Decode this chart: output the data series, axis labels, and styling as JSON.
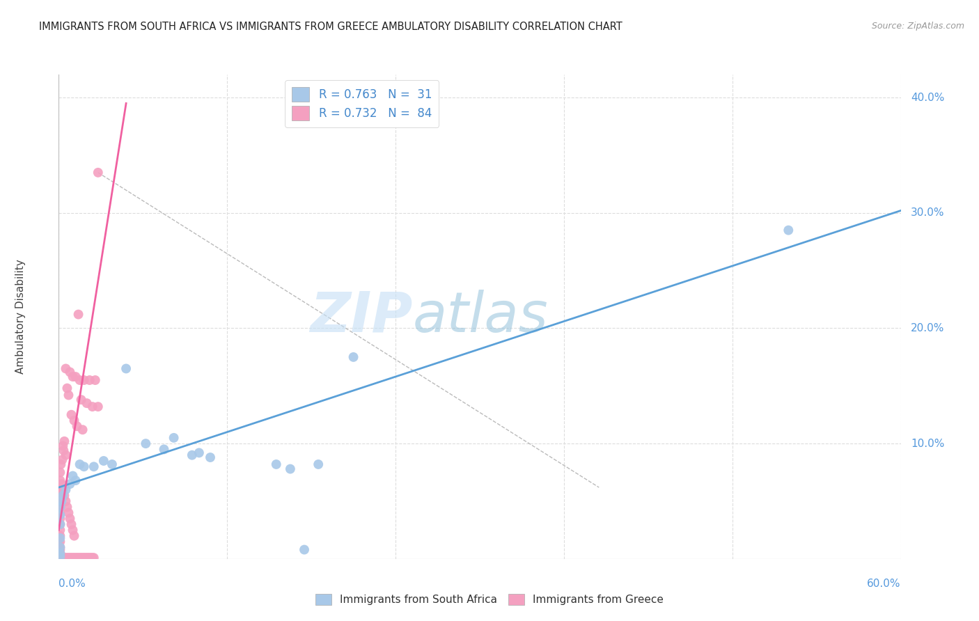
{
  "title": "IMMIGRANTS FROM SOUTH AFRICA VS IMMIGRANTS FROM GREECE AMBULATORY DISABILITY CORRELATION CHART",
  "source": "Source: ZipAtlas.com",
  "ylabel": "Ambulatory Disability",
  "legend_blue_R": "R = 0.763",
  "legend_blue_N": "N =  31",
  "legend_pink_R": "R = 0.732",
  "legend_pink_N": "N =  84",
  "legend_label_blue": "Immigrants from South Africa",
  "legend_label_pink": "Immigrants from Greece",
  "blue_color": "#a8c8e8",
  "pink_color": "#f4a0c0",
  "blue_line_color": "#5aa0d8",
  "pink_line_color": "#f060a0",
  "xlim": [
    0.0,
    0.6
  ],
  "ylim": [
    0.0,
    0.42
  ],
  "ytick_values": [
    0.1,
    0.2,
    0.3,
    0.4
  ],
  "ytick_labels": [
    "10.0%",
    "20.0%",
    "30.0%",
    "40.0%"
  ],
  "xtick_values": [
    0.0,
    0.12,
    0.24,
    0.36,
    0.48,
    0.6
  ],
  "grid_color": "#dddddd",
  "background_color": "#ffffff",
  "blue_scatter": [
    [
      0.52,
      0.285
    ],
    [
      0.21,
      0.175
    ],
    [
      0.048,
      0.165
    ],
    [
      0.062,
      0.1
    ],
    [
      0.075,
      0.095
    ],
    [
      0.082,
      0.105
    ],
    [
      0.095,
      0.09
    ],
    [
      0.1,
      0.092
    ],
    [
      0.108,
      0.088
    ],
    [
      0.015,
      0.082
    ],
    [
      0.018,
      0.08
    ],
    [
      0.025,
      0.08
    ],
    [
      0.032,
      0.085
    ],
    [
      0.038,
      0.082
    ],
    [
      0.01,
      0.072
    ],
    [
      0.012,
      0.068
    ],
    [
      0.008,
      0.065
    ],
    [
      0.005,
      0.06
    ],
    [
      0.003,
      0.055
    ],
    [
      0.002,
      0.05
    ],
    [
      0.001,
      0.045
    ],
    [
      0.001,
      0.038
    ],
    [
      0.001,
      0.03
    ],
    [
      0.001,
      0.018
    ],
    [
      0.001,
      0.01
    ],
    [
      0.001,
      0.005
    ],
    [
      0.001,
      0.002
    ],
    [
      0.155,
      0.082
    ],
    [
      0.165,
      0.078
    ],
    [
      0.175,
      0.008
    ],
    [
      0.185,
      0.082
    ]
  ],
  "pink_scatter": [
    [
      0.028,
      0.335
    ],
    [
      0.014,
      0.212
    ],
    [
      0.005,
      0.165
    ],
    [
      0.008,
      0.162
    ],
    [
      0.01,
      0.158
    ],
    [
      0.012,
      0.158
    ],
    [
      0.015,
      0.155
    ],
    [
      0.018,
      0.155
    ],
    [
      0.022,
      0.155
    ],
    [
      0.026,
      0.155
    ],
    [
      0.006,
      0.148
    ],
    [
      0.007,
      0.142
    ],
    [
      0.016,
      0.138
    ],
    [
      0.02,
      0.135
    ],
    [
      0.024,
      0.132
    ],
    [
      0.028,
      0.132
    ],
    [
      0.009,
      0.125
    ],
    [
      0.011,
      0.12
    ],
    [
      0.013,
      0.115
    ],
    [
      0.017,
      0.112
    ],
    [
      0.004,
      0.102
    ],
    [
      0.003,
      0.098
    ],
    [
      0.0035,
      0.094
    ],
    [
      0.005,
      0.09
    ],
    [
      0.0025,
      0.086
    ],
    [
      0.0015,
      0.082
    ],
    [
      0.001,
      0.075
    ],
    [
      0.001,
      0.068
    ],
    [
      0.001,
      0.06
    ],
    [
      0.001,
      0.055
    ],
    [
      0.001,
      0.05
    ],
    [
      0.001,
      0.045
    ],
    [
      0.001,
      0.04
    ],
    [
      0.001,
      0.035
    ],
    [
      0.001,
      0.03
    ],
    [
      0.001,
      0.025
    ],
    [
      0.001,
      0.02
    ],
    [
      0.001,
      0.015
    ],
    [
      0.001,
      0.01
    ],
    [
      0.001,
      0.008
    ],
    [
      0.001,
      0.005
    ],
    [
      0.001,
      0.003
    ],
    [
      0.001,
      0.001
    ],
    [
      0.002,
      0.001
    ],
    [
      0.003,
      0.001
    ],
    [
      0.004,
      0.001
    ],
    [
      0.005,
      0.001
    ],
    [
      0.006,
      0.001
    ],
    [
      0.007,
      0.001
    ],
    [
      0.008,
      0.001
    ],
    [
      0.009,
      0.001
    ],
    [
      0.01,
      0.001
    ],
    [
      0.011,
      0.001
    ],
    [
      0.012,
      0.001
    ],
    [
      0.013,
      0.001
    ],
    [
      0.014,
      0.001
    ],
    [
      0.015,
      0.001
    ],
    [
      0.016,
      0.001
    ],
    [
      0.017,
      0.001
    ],
    [
      0.018,
      0.001
    ],
    [
      0.019,
      0.001
    ],
    [
      0.02,
      0.001
    ],
    [
      0.021,
      0.001
    ],
    [
      0.022,
      0.001
    ],
    [
      0.023,
      0.001
    ],
    [
      0.024,
      0.001
    ],
    [
      0.025,
      0.001
    ],
    [
      0.0,
      0.02
    ],
    [
      0.0,
      0.015
    ],
    [
      0.0,
      0.01
    ],
    [
      0.0,
      0.008
    ],
    [
      0.0,
      0.005
    ],
    [
      0.0,
      0.003
    ],
    [
      0.0,
      0.001
    ],
    [
      0.002,
      0.065
    ],
    [
      0.003,
      0.06
    ],
    [
      0.004,
      0.055
    ],
    [
      0.005,
      0.05
    ],
    [
      0.006,
      0.045
    ],
    [
      0.007,
      0.04
    ],
    [
      0.008,
      0.035
    ],
    [
      0.009,
      0.03
    ],
    [
      0.01,
      0.025
    ],
    [
      0.011,
      0.02
    ]
  ],
  "blue_trendline_x": [
    0.0,
    0.6
  ],
  "blue_trendline_y": [
    0.062,
    0.302
  ],
  "pink_trendline_x": [
    0.0,
    0.048
  ],
  "pink_trendline_y": [
    0.025,
    0.395
  ],
  "dashed_line_x": [
    0.028,
    0.385
  ],
  "dashed_line_y": [
    0.335,
    0.062
  ],
  "watermark_zip_color": "#c5dff5",
  "watermark_atlas_color": "#8bbcd8"
}
